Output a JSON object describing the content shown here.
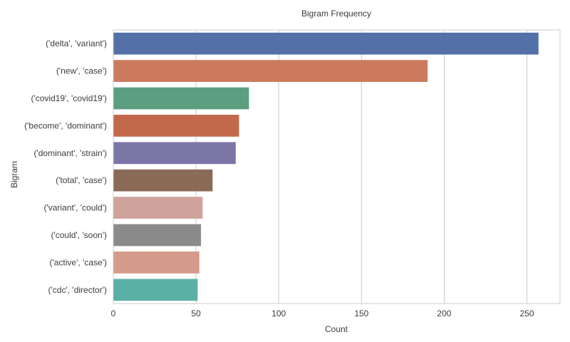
{
  "chart_data": {
    "type": "bar",
    "orientation": "horizontal",
    "title": "Bigram Frequency",
    "xlabel": "Count",
    "ylabel": "Bigram",
    "categories": [
      "('delta', 'variant')",
      "('new', 'case')",
      "('covid19', 'covid19')",
      "('become', 'dominant')",
      "('dominant', 'strain')",
      "('total', 'case')",
      "('variant', 'could')",
      "('could', 'soon')",
      "('active', 'case')",
      "('cdc', 'director')"
    ],
    "values": [
      257,
      190,
      82,
      76,
      74,
      60,
      54,
      53,
      52,
      51
    ],
    "colors": [
      "#5470a8",
      "#cc7a5e",
      "#5b9e80",
      "#c2694b",
      "#7c76a6",
      "#8b6a58",
      "#cfa39c",
      "#8a8a8a",
      "#d49a8a",
      "#5bb0a6"
    ],
    "xlim": [
      0,
      270
    ],
    "xticks": [
      0,
      50,
      100,
      150,
      200,
      250
    ],
    "grid": true
  }
}
